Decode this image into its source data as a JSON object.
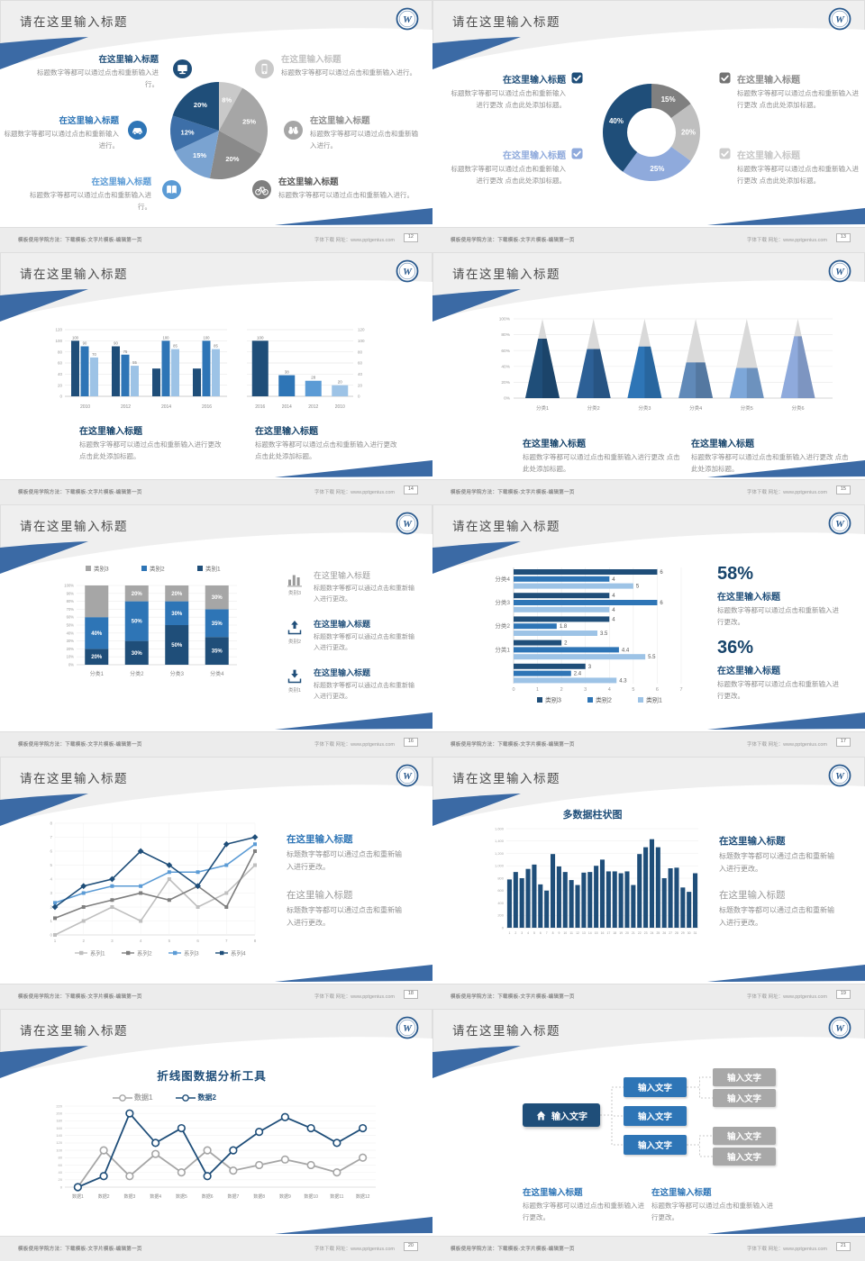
{
  "common": {
    "slide_title": "请在这里输入标题",
    "heading_placeholder": "在这里输入标题",
    "body_short": "标题数字等都可以通过点击和重新输入进行。",
    "body_medium": "标题数字等都可以通过点击和重新输入进行更改。",
    "body_long": "标题数字等都可以通过点击和重新输入进行更改 点击此处添加标题。",
    "input_text": "输入文字",
    "footer_left": "模板使用学院方法：下载模板-文字片模板-编辑第一页",
    "footer_right": "字体下载 网址：www.pptgenius.com",
    "logo_letter": "W"
  },
  "palette": {
    "navy": "#1f4e79",
    "blue": "#2e75b6",
    "steel": "#5b9bd5",
    "light": "#9dc3e6",
    "swoosh": "#3b6aa5",
    "gray_dark": "#7f7f7f",
    "gray": "#a6a6a6",
    "gray_light": "#c9c9c9"
  },
  "slides": [
    {
      "page": "12",
      "icons": [
        "monitor-icon",
        "car-icon",
        "book-icon",
        "phone-icon",
        "binoculars-icon",
        "bicycle-icon"
      ]
    },
    {
      "page": "13"
    },
    {
      "page": "14"
    },
    {
      "page": "15"
    },
    {
      "page": "16",
      "panel_labels": [
        "类别3",
        "类别2",
        "类别1"
      ]
    },
    {
      "page": "17",
      "stat1": "58%",
      "stat2": "36%"
    },
    {
      "page": "18"
    },
    {
      "page": "19"
    },
    {
      "page": "20"
    },
    {
      "page": "21",
      "tree": {
        "root": "输入文字",
        "mid": [
          "输入文字",
          "输入文字",
          "输入文字"
        ],
        "leaf": [
          "输入文字",
          "输入文字",
          "输入文字",
          "输入文字"
        ]
      }
    }
  ],
  "chart_data": [
    {
      "type": "pie",
      "slide_page": "12",
      "values": [
        8,
        25,
        20,
        15,
        12,
        20
      ],
      "labels": [
        "8%",
        "25%",
        "20%",
        "15%",
        "12%",
        "20%"
      ],
      "colors": [
        "#c9c9c9",
        "#a6a6a6",
        "#8a8a8a",
        "#7aa3d1",
        "#3d6fa8",
        "#1f4e79"
      ],
      "start": "top",
      "direction": "clockwise"
    },
    {
      "type": "pie",
      "subtype": "donut",
      "slide_page": "13",
      "values": [
        15,
        20,
        25,
        40
      ],
      "labels": [
        "15%",
        "20%",
        "25%",
        "40%"
      ],
      "colors": [
        "#808080",
        "#bfbfbf",
        "#8faadc",
        "#1f4e79"
      ]
    },
    {
      "type": "bar",
      "subtype": "grouped",
      "slide_page": "14",
      "categories": [
        "2010",
        "2012",
        "2014",
        "2016"
      ],
      "series": [
        {
          "name": "series-dark",
          "color": "#1f4e79",
          "values": [
            100,
            90,
            50,
            50
          ],
          "labels": [
            "100",
            "90",
            "",
            ""
          ]
        },
        {
          "name": "series-mid",
          "color": "#2e75b6",
          "values": [
            90,
            75,
            100,
            100
          ],
          "labels": [
            "90",
            "75",
            "100",
            "100"
          ]
        },
        {
          "name": "series-light",
          "color": "#9dc3e6",
          "values": [
            70,
            55,
            85,
            85
          ],
          "labels": [
            "70",
            "55",
            "85",
            "85"
          ]
        }
      ],
      "ylim": [
        0,
        120
      ],
      "ystep": 20,
      "yaxis": "left",
      "grid": true
    },
    {
      "type": "bar",
      "slide_page": "14",
      "categories": [
        "2016",
        "2014",
        "2012",
        "2010"
      ],
      "values": [
        100,
        38,
        28,
        20
      ],
      "labels": [
        "100",
        "38",
        "28",
        "20"
      ],
      "colors": [
        "#1f4e79",
        "#2e75b6",
        "#5b9bd5",
        "#9dc3e6"
      ],
      "ylim": [
        0,
        120
      ],
      "ystep": 20,
      "yaxis": "right",
      "grid": true
    },
    {
      "type": "pyramid",
      "slide_page": "15",
      "categories": [
        "分类1",
        "分类2",
        "分类3",
        "分类4",
        "分类5",
        "分类6"
      ],
      "values_pct": [
        75,
        62,
        65,
        45,
        38,
        78
      ],
      "colors": [
        "#1f4e79",
        "#2d6096",
        "#2e75b6",
        "#6089b8",
        "#7da7d9",
        "#8faadc"
      ],
      "empty_color": "#d9d9d9",
      "ylim": [
        0,
        100
      ],
      "ystep": 20
    },
    {
      "type": "bar",
      "subtype": "stacked-100",
      "slide_page": "16",
      "categories": [
        "分类1",
        "分类2",
        "分类3",
        "分类4"
      ],
      "series": [
        {
          "name": "类别1",
          "color": "#1f4e79",
          "values": [
            20,
            30,
            50,
            35
          ],
          "labels": [
            "20%",
            "30%",
            "50%",
            "35%"
          ]
        },
        {
          "name": "类别2",
          "color": "#2e75b6",
          "values": [
            40,
            50,
            30,
            35
          ],
          "labels": [
            "40%",
            "50%",
            "30%",
            "35%"
          ]
        },
        {
          "name": "类别3",
          "color": "#a6a6a6",
          "values": [
            40,
            20,
            20,
            30
          ],
          "labels": [
            "",
            "20%",
            "20%",
            "30%"
          ]
        }
      ],
      "legend": [
        "类别3",
        "类别2",
        "类别1"
      ],
      "ylim": [
        0,
        100
      ],
      "ystep": 10
    },
    {
      "type": "bar",
      "subtype": "horizontal",
      "slide_page": "17",
      "groups": [
        {
          "label": "分类4",
          "values": [
            6,
            4,
            5
          ]
        },
        {
          "label": "分类3",
          "values": [
            4,
            6,
            4
          ]
        },
        {
          "label": "分类2",
          "values": [
            4,
            1.8,
            3.5
          ]
        },
        {
          "label": "分类1",
          "values": [
            2,
            4.4,
            5.5
          ]
        },
        {
          "label": "",
          "values": [
            3,
            2.4,
            4.3
          ]
        }
      ],
      "series_names": [
        "类别3",
        "类别2",
        "类别1"
      ],
      "series_colors": [
        "#1f4e79",
        "#2e75b6",
        "#9dc3e6"
      ],
      "xlim": [
        0,
        7
      ],
      "xstep": 1,
      "legend_position": "bottom"
    },
    {
      "type": "line",
      "slide_page": "18",
      "x": [
        1,
        2,
        3,
        4,
        5,
        6,
        7,
        8
      ],
      "series": [
        {
          "name": "系列1",
          "color": "#bfbfbf",
          "values": [
            0,
            1,
            2,
            1,
            4,
            2,
            3,
            5
          ]
        },
        {
          "name": "系列2",
          "color": "#7f7f7f",
          "values": [
            1.2,
            2,
            2.5,
            3,
            2.5,
            3.5,
            2,
            6
          ]
        },
        {
          "name": "系列3",
          "color": "#5b9bd5",
          "values": [
            2.3,
            3,
            3.5,
            3.5,
            4.5,
            4.5,
            5,
            6.5
          ]
        },
        {
          "name": "系列4",
          "color": "#1f4e79",
          "values": [
            2,
            3.5,
            4,
            6,
            5,
            3.5,
            6.5,
            7
          ]
        }
      ],
      "ylim": [
        0,
        8
      ],
      "ystep": 1,
      "legend_position": "bottom",
      "marker": "square"
    },
    {
      "type": "bar",
      "slide_page": "19",
      "title": "多数据柱状图",
      "categories": [
        "1",
        "2",
        "3",
        "4",
        "5",
        "6",
        "7",
        "8",
        "9",
        "10",
        "11",
        "12",
        "13",
        "14",
        "15",
        "16",
        "17",
        "18",
        "19",
        "20",
        "21",
        "22",
        "23",
        "24",
        "25",
        "26",
        "27",
        "28",
        "29",
        "30",
        "31"
      ],
      "values": [
        780,
        900,
        800,
        950,
        1020,
        700,
        600,
        1190,
        990,
        900,
        770,
        690,
        890,
        900,
        1000,
        1100,
        910,
        910,
        880,
        910,
        690,
        1190,
        1300,
        1430,
        1300,
        800,
        960,
        970,
        650,
        580,
        880
      ],
      "color": "#1f4e79",
      "ylim": [
        0,
        1600
      ],
      "ystep": 200
    },
    {
      "type": "line",
      "slide_page": "20",
      "title": "折线图数据分析工具",
      "categories": [
        "数据1",
        "数据2",
        "数据3",
        "数据4",
        "数据5",
        "数据6",
        "数据7",
        "数据8",
        "数据9",
        "数据10",
        "数据11",
        "数据12"
      ],
      "series": [
        {
          "name": "数据1",
          "color": "#a6a6a6",
          "values": [
            0,
            100,
            30,
            90,
            40,
            100,
            45,
            60,
            75,
            60,
            40,
            80
          ]
        },
        {
          "name": "数据2",
          "color": "#1f4e79",
          "values": [
            0,
            30,
            200,
            120,
            160,
            30,
            100,
            150,
            190,
            160,
            120,
            160
          ]
        }
      ],
      "ylim": [
        0,
        220
      ],
      "ystep": 20,
      "legend_position": "top",
      "marker": "circle"
    }
  ]
}
